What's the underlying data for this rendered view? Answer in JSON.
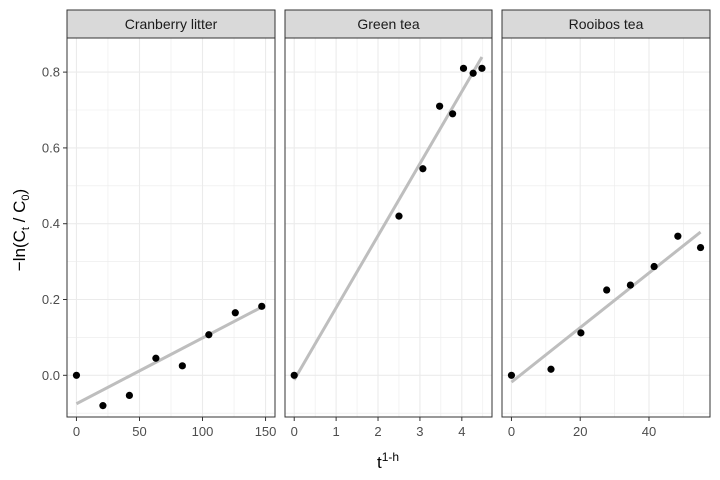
{
  "chart_data": {
    "type": "scatter",
    "ylabel": "-ln(C_t / C_0)",
    "ylabel_parts": {
      "prefix": "−ln(C",
      "sub1": "t",
      "mid": " / C",
      "sub2": "0",
      "suffix": ")"
    },
    "xlabel_parts": {
      "base": "t",
      "sup": "1-h"
    },
    "ylim": [
      -0.11,
      0.89
    ],
    "yticks": [
      0.0,
      0.2,
      0.4,
      0.6,
      0.8
    ],
    "ytick_labels": [
      "0.0",
      "0.2",
      "0.4",
      "0.6",
      "0.8"
    ],
    "grid": true,
    "trend_line": "linear fit",
    "colors": {
      "points": "#000000",
      "fit_line": "#bebebe",
      "strip_bg": "#d9d9d9",
      "grid": "#ebebeb",
      "panel_border": "#333333"
    },
    "panels": [
      {
        "title": "Cranberry litter",
        "xlim": [
          -7.5,
          157.5
        ],
        "xticks": [
          0,
          50,
          100,
          150
        ],
        "xtick_labels": [
          "0",
          "50",
          "100",
          "150"
        ],
        "x": [
          0,
          21,
          42,
          63,
          84,
          105,
          126,
          147
        ],
        "y": [
          0.0,
          -0.08,
          -0.053,
          0.045,
          0.025,
          0.107,
          0.165,
          0.182
        ],
        "fit": {
          "x": [
            0,
            147
          ],
          "y": [
            -0.075,
            0.18
          ]
        }
      },
      {
        "title": "Green tea",
        "xlim": [
          -0.22,
          4.72
        ],
        "xticks": [
          0,
          1,
          2,
          3,
          4
        ],
        "xtick_labels": [
          "0",
          "1",
          "2",
          "3",
          "4"
        ],
        "x": [
          0,
          2.5,
          3.07,
          3.47,
          3.78,
          4.04,
          4.27,
          4.48
        ],
        "y": [
          0.0,
          0.42,
          0.545,
          0.71,
          0.69,
          0.81,
          0.797,
          0.81
        ],
        "fit": {
          "x": [
            0,
            4.48
          ],
          "y": [
            -0.012,
            0.84
          ]
        }
      },
      {
        "title": "Rooibos tea",
        "xlim": [
          -2.75,
          57.75
        ],
        "xticks": [
          0,
          20,
          40
        ],
        "xtick_labels": [
          "0",
          "20",
          "40"
        ],
        "x": [
          0,
          11.5,
          20.2,
          27.7,
          34.6,
          41.5,
          48.4,
          55
        ],
        "y": [
          0.0,
          0.016,
          0.112,
          0.225,
          0.238,
          0.287,
          0.367,
          0.337
        ],
        "fit": {
          "x": [
            0,
            55
          ],
          "y": [
            -0.018,
            0.378
          ]
        }
      }
    ]
  }
}
